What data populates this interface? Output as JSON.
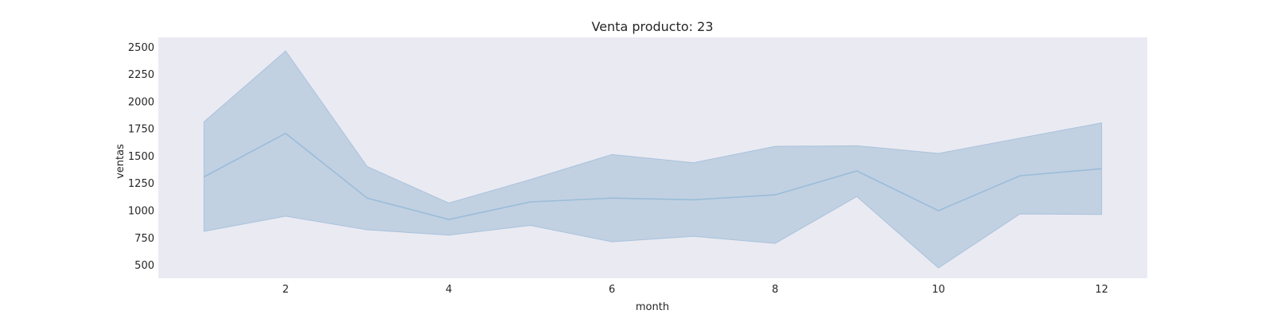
{
  "chart_data": {
    "type": "line",
    "title": "Venta producto: 23",
    "xlabel": "month",
    "ylabel": "ventas",
    "xlim": [
      0.44,
      12.56
    ],
    "ylim": [
      380,
      2590
    ],
    "x_ticks": [
      2,
      4,
      6,
      8,
      10,
      12
    ],
    "y_ticks": [
      500,
      750,
      1000,
      1250,
      1500,
      1750,
      2000,
      2250,
      2500
    ],
    "grid": false,
    "legend": "none",
    "colors": {
      "plot_background": "#eaeaf2",
      "line": "#9bbcd8",
      "band_fill": "#c1d1e2",
      "band_edge": "#a9c2dc"
    },
    "series": [
      {
        "x": [
          1,
          2,
          3,
          4,
          5,
          6,
          7,
          8,
          9,
          10,
          11,
          12
        ],
        "values": [
          1310,
          1710,
          1115,
          920,
          1080,
          1115,
          1100,
          1145,
          1365,
          1000,
          1320,
          1385
        ],
        "ci_lower": [
          810,
          950,
          825,
          775,
          865,
          715,
          765,
          700,
          1130,
          475,
          970,
          965
        ],
        "ci_upper": [
          1815,
          2465,
          1405,
          1070,
          1285,
          1515,
          1440,
          1590,
          1595,
          1525,
          1665,
          1805
        ]
      }
    ]
  }
}
